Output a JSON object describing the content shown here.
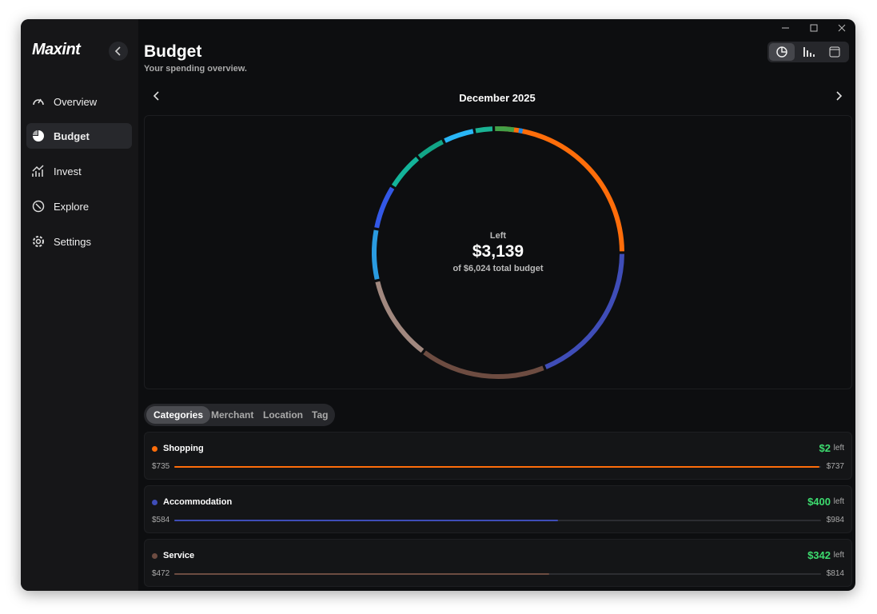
{
  "app": {
    "logo": "Maxint",
    "nav": [
      "Overview",
      "Budget",
      "Invest",
      "Explore",
      "Settings"
    ]
  },
  "header": {
    "title": "Budget",
    "subtitle": "Your spending overview."
  },
  "period": "December 2025",
  "summary": {
    "label": "Left",
    "amount": "$3,139",
    "caption": "of $6,024 total budget"
  },
  "tabs": [
    "Categories",
    "Merchant",
    "Location",
    "Tag"
  ],
  "categories": [
    {
      "name": "Shopping",
      "color": "#ff6d0a",
      "left": "$2",
      "left_label": "left",
      "spent": {
        "value": 735,
        "label": "$735"
      },
      "budget": {
        "value": 737,
        "label": "$737"
      }
    },
    {
      "name": "Accommodation",
      "color": "#3f4db8",
      "left": "$400",
      "left_label": "left",
      "spent": {
        "value": 584,
        "label": "$584"
      },
      "budget": {
        "value": 984,
        "label": "$984"
      }
    },
    {
      "name": "Service",
      "color": "#6d4c41",
      "left": "$342",
      "left_label": "left",
      "spent": {
        "value": 472,
        "label": "$472"
      },
      "budget": {
        "value": 814,
        "label": "$814"
      }
    }
  ]
}
